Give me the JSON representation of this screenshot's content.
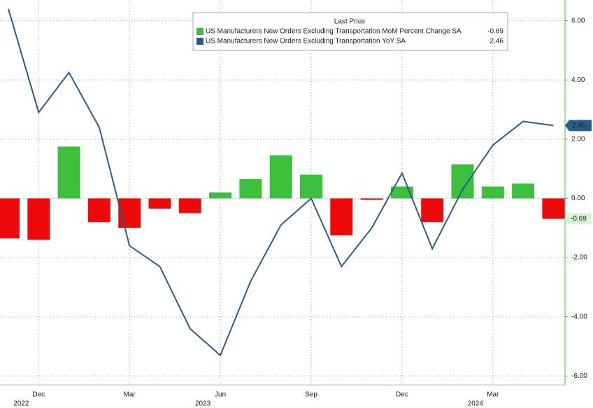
{
  "chart_data": {
    "type": "bar_line",
    "legend_title": "Last Price",
    "categories": [
      null,
      "Dec",
      null,
      null,
      "Mar",
      null,
      null,
      "Jun",
      null,
      null,
      "Sep",
      null,
      null,
      "Dec",
      null,
      null,
      "Mar",
      null,
      null
    ],
    "years": [
      null,
      "2022",
      null,
      null,
      null,
      null,
      null,
      "2023",
      null,
      null,
      null,
      null,
      null,
      null,
      null,
      null,
      "2024",
      null,
      null
    ],
    "series": [
      {
        "name": "US Manufacturers New Orders Excluding Transportation MoM Percent Change SA",
        "type": "bar",
        "color": "#3cbf3c",
        "negative_color": "#ee0a0a",
        "values": [
          -1.35,
          -1.4,
          1.75,
          -0.8,
          -1.0,
          -0.35,
          -0.5,
          0.2,
          0.65,
          1.45,
          0.8,
          -1.25,
          -0.05,
          0.4,
          -0.8,
          1.15,
          0.4,
          0.5,
          -0.69
        ],
        "last_value_label": "-0.69"
      },
      {
        "name": "US Manufacturers New Orders Excluding Transportation YoY SA",
        "type": "line",
        "color": "#2b5c88",
        "values": [
          6.4,
          2.9,
          4.25,
          2.4,
          -1.6,
          -2.3,
          -4.4,
          -5.3,
          -2.8,
          -0.9,
          0.0,
          -2.3,
          -1.0,
          0.85,
          -1.7,
          0.3,
          1.8,
          2.6,
          2.46
        ],
        "last_value_label": "2.46"
      }
    ],
    "ylim": [
      -6.3,
      6.7
    ],
    "yticks": [
      {
        "value": 6,
        "label": "6.00"
      },
      {
        "value": 4,
        "label": "4.00"
      },
      {
        "value": 2,
        "label": "2.00"
      },
      {
        "value": 0,
        "label": "0.00"
      },
      {
        "value": -2,
        "label": "-2.00"
      },
      {
        "value": -4,
        "label": "-4.00"
      },
      {
        "value": -6,
        "label": "-6.00"
      }
    ],
    "grid": true
  }
}
